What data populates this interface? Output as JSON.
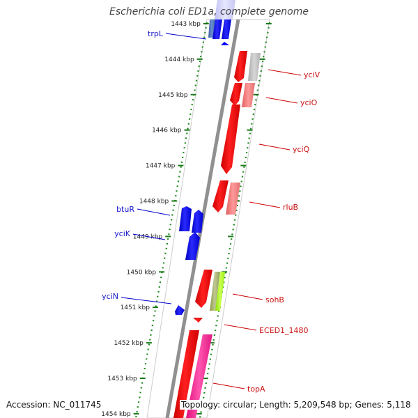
{
  "title": "Escherichia coli ED1a, complete genome",
  "accession": "Accession: NC_011745",
  "topology": "Topology: circular; Length: 5,209,548 bp; Genes: 5,118",
  "ticks": [
    "1443 kbp",
    "1444 kbp",
    "1445 kbp",
    "1446 kbp",
    "1447 kbp",
    "1448 kbp",
    "1449 kbp",
    "1450 kbp",
    "1451 kbp",
    "1452 kbp",
    "1453 kbp",
    "1454 kbp"
  ],
  "genes_left": [
    {
      "name": "trpL",
      "color": "#1515cc"
    },
    {
      "name": "btuR",
      "color": "#1515cc"
    },
    {
      "name": "yciK",
      "color": "#1515cc"
    },
    {
      "name": "yciN",
      "color": "#1515cc"
    }
  ],
  "genes_right": [
    {
      "name": "yciV",
      "color": "#cc1111"
    },
    {
      "name": "yciO",
      "color": "#cc1111"
    },
    {
      "name": "yciQ",
      "color": "#cc1111"
    },
    {
      "name": "rluB",
      "color": "#cc1111"
    },
    {
      "name": "sohB",
      "color": "#cc1111"
    },
    {
      "name": "ECED1_1480",
      "color": "#cc1111"
    },
    {
      "name": "topA",
      "color": "#cc1111"
    }
  ],
  "colors": {
    "forward": "#ff0000",
    "reverse": "#0000ff",
    "backbone": "#808080",
    "dots": "#228B22",
    "ticks": "#1a7a1a"
  }
}
